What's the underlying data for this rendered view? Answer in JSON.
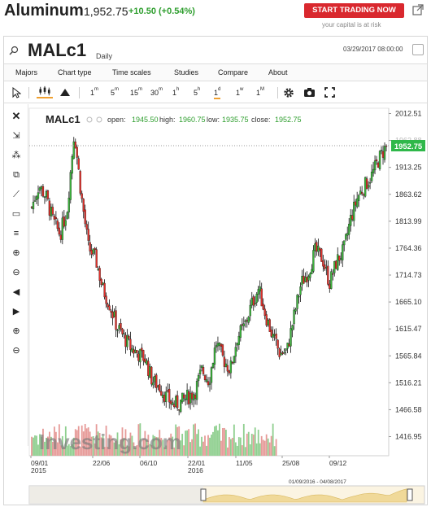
{
  "header": {
    "title": "Aluminum",
    "price": "1,952.75",
    "change": "+10.50 (+0.54%)",
    "cta": "START TRADING NOW",
    "risk_note": "your capital is at risk"
  },
  "widget": {
    "symbol": "MALc1",
    "interval": "Daily",
    "datetime": "03/29/2017 08:00:00",
    "menu": [
      "Majors",
      "Chart type",
      "Time scales",
      "Studies",
      "Compare",
      "About"
    ],
    "timeframes": [
      {
        "label": "1",
        "sup": "m"
      },
      {
        "label": "5",
        "sup": "m"
      },
      {
        "label": "15",
        "sup": "m"
      },
      {
        "label": "30",
        "sup": "m"
      },
      {
        "label": "1",
        "sup": "h"
      },
      {
        "label": "5",
        "sup": "h"
      },
      {
        "label": "1",
        "sup": "d",
        "active": true
      },
      {
        "label": "1",
        "sup": "w"
      },
      {
        "label": "1",
        "sup": "M"
      }
    ],
    "left_tools": [
      "cross-icon",
      "cursor-icon",
      "fibonacci-icon",
      "clone-icon",
      "trendline-icon",
      "rectangle-icon",
      "lines-icon",
      "zoom-in-icon",
      "zoom-out-icon",
      "scroll-left-icon",
      "scroll-right-icon",
      "zoom-in-alt-icon",
      "zoom-out-alt-icon"
    ]
  },
  "legend": {
    "symbol": "MALc1",
    "open_label": "open:",
    "open": "1945.50",
    "high_label": "high:",
    "high": "1960.75",
    "low_label": "low:",
    "low": "1935.75",
    "close_label": "close:",
    "close": "1952.75"
  },
  "chart_data": {
    "type": "candlestick",
    "yticks": [
      "2012.51",
      "1962.88",
      "1913.25",
      "1863.62",
      "1813.99",
      "1764.36",
      "1714.73",
      "1665.10",
      "1615.47",
      "1565.84",
      "1516.21",
      "1466.58",
      "1416.95"
    ],
    "ylim": [
      1416.95,
      2012.51
    ],
    "xticks": [
      {
        "label": "09/01",
        "sub": "2015"
      },
      {
        "label": "22/06",
        "sub": ""
      },
      {
        "label": "06/10",
        "sub": ""
      },
      {
        "label": "22/01",
        "sub": "2016"
      },
      {
        "label": "11/05",
        "sub": ""
      },
      {
        "label": "25/08",
        "sub": ""
      },
      {
        "label": "09/12",
        "sub": ""
      }
    ],
    "last_price": "1952.75",
    "series": [
      {
        "name": "MALc1",
        "approx_close_path": [
          1840,
          1880,
          1860,
          1815,
          1790,
          1835,
          1980,
          1860,
          1765,
          1745,
          1690,
          1660,
          1620,
          1600,
          1580,
          1570,
          1560,
          1520,
          1510,
          1490,
          1475,
          1480,
          1490,
          1500,
          1540,
          1520,
          1590,
          1560,
          1540,
          1600,
          1620,
          1660,
          1690,
          1640,
          1600,
          1570,
          1575,
          1640,
          1700,
          1720,
          1760,
          1745,
          1700,
          1740,
          1760,
          1820,
          1860,
          1880,
          1900,
          1930,
          1952.75
        ]
      }
    ],
    "navigator_range": "01/09/2016 - 04/08/2017",
    "watermark": "Investing.com"
  },
  "colors": {
    "up": "#3cb43c",
    "down": "#e0302a",
    "last_price_tag": "#2fb84a",
    "accent": "#f0a030",
    "cta": "#d9282e"
  }
}
